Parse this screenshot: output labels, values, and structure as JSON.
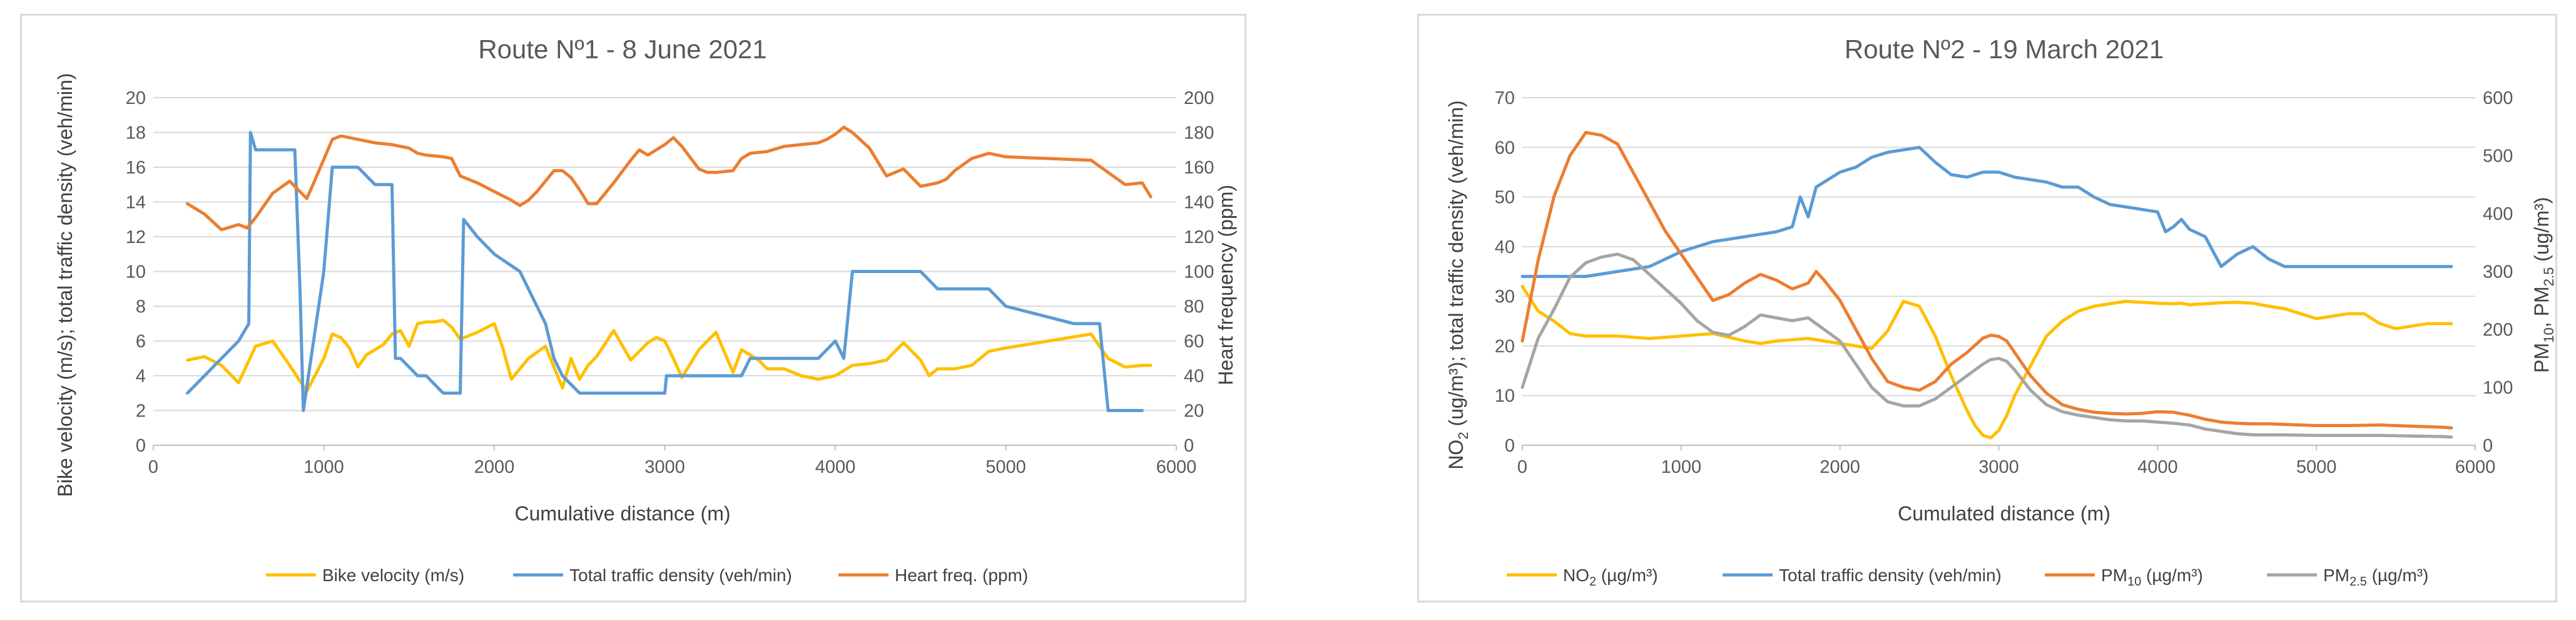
{
  "chart_data": [
    {
      "type": "line",
      "title": "Route Nº1 - 8 June 2021",
      "xlabel": "Cumulative distance (m)",
      "ylabel": "Bike velocity (m/s); total traffic density (veh/min)",
      "y2label": "Heart frequency (ppm)",
      "xlim": [
        0,
        6000
      ],
      "ylim": [
        0,
        20
      ],
      "y2lim": [
        0,
        200
      ],
      "x_ticks": [
        "0",
        "1000",
        "2000",
        "3000",
        "4000",
        "5000",
        "6000"
      ],
      "y_ticks": [
        "0",
        "2",
        "4",
        "6",
        "8",
        "10",
        "12",
        "14",
        "16",
        "18",
        "20"
      ],
      "y2_ticks": [
        "0",
        "20",
        "40",
        "60",
        "80",
        "100",
        "120",
        "140",
        "160",
        "180",
        "200"
      ],
      "grid": true,
      "legend_position": "bottom",
      "series": [
        {
          "name": "Bike velocity (m/s)",
          "axis": "left",
          "color": "#ffc000",
          "x": [
            200,
            300,
            400,
            500,
            600,
            700,
            800,
            900,
            1000,
            1050,
            1100,
            1150,
            1200,
            1250,
            1300,
            1350,
            1400,
            1450,
            1500,
            1550,
            1600,
            1650,
            1700,
            1750,
            1800,
            1900,
            2000,
            2050,
            2100,
            2150,
            2200,
            2300,
            2350,
            2400,
            2450,
            2500,
            2550,
            2600,
            2700,
            2800,
            2900,
            2950,
            3000,
            3050,
            3100,
            3200,
            3300,
            3400,
            3450,
            3500,
            3550,
            3600,
            3700,
            3800,
            3900,
            4000,
            4100,
            4200,
            4300,
            4400,
            4450,
            4500,
            4550,
            4600,
            4650,
            4700,
            4800,
            4900,
            5000,
            5500,
            5600,
            5700,
            5800,
            5850
          ],
          "values": [
            4.9,
            5.1,
            4.6,
            3.6,
            5.7,
            6.0,
            4.6,
            3.1,
            5.0,
            6.4,
            6.2,
            5.6,
            4.5,
            5.2,
            5.5,
            5.8,
            6.4,
            6.6,
            5.7,
            7.0,
            7.1,
            7.1,
            7.2,
            6.8,
            6.1,
            6.5,
            7.0,
            5.6,
            3.8,
            4.4,
            5.0,
            5.7,
            4.5,
            3.3,
            5.0,
            3.8,
            4.6,
            5.1,
            6.6,
            4.9,
            5.9,
            6.2,
            6.0,
            5.0,
            3.9,
            5.5,
            6.5,
            4.2,
            5.5,
            5.2,
            4.9,
            4.4,
            4.4,
            4.0,
            3.8,
            4.0,
            4.6,
            4.7,
            4.9,
            5.9,
            5.4,
            4.9,
            4.0,
            4.4,
            4.4,
            4.4,
            4.6,
            5.4,
            5.6,
            6.4,
            5.0,
            4.5,
            4.6,
            4.6
          ]
        },
        {
          "name": "Total traffic density (veh/min)",
          "axis": "left",
          "color": "#5b9bd5",
          "x": [
            200,
            300,
            400,
            500,
            560,
            570,
            600,
            700,
            800,
            830,
            860,
            880,
            1000,
            1050,
            1100,
            1200,
            1300,
            1400,
            1420,
            1450,
            1500,
            1550,
            1600,
            1700,
            1750,
            1800,
            1820,
            1900,
            2000,
            2150,
            2250,
            2300,
            2350,
            2400,
            2500,
            2600,
            2700,
            2800,
            2900,
            3000,
            3010,
            3200,
            3300,
            3400,
            3450,
            3500,
            3600,
            3700,
            3800,
            3900,
            3950,
            4000,
            4050,
            4100,
            4200,
            4300,
            4400,
            4500,
            4600,
            4700,
            4800,
            4900,
            5000,
            5400,
            5500,
            5550,
            5600,
            5700,
            5800
          ],
          "values": [
            3,
            4,
            5,
            6,
            7,
            18,
            17,
            17,
            17,
            17,
            9,
            2,
            10,
            16,
            16,
            16,
            15,
            15,
            5,
            5,
            4.5,
            4,
            4,
            3,
            3,
            3,
            13,
            12,
            11,
            10,
            8,
            7,
            5,
            4,
            3,
            3,
            3,
            3,
            3,
            3,
            4,
            4,
            4,
            4,
            4,
            5,
            5,
            5,
            5,
            5,
            5.5,
            6,
            5,
            10,
            10,
            10,
            10,
            10,
            9,
            9,
            9,
            9,
            8,
            7,
            7,
            7,
            2,
            2,
            2
          ]
        },
        {
          "name": "Heart freq. (ppm)",
          "axis": "right",
          "color": "#ed7d31",
          "x": [
            200,
            300,
            400,
            500,
            550,
            600,
            700,
            800,
            900,
            950,
            1050,
            1100,
            1150,
            1200,
            1300,
            1400,
            1500,
            1550,
            1600,
            1700,
            1750,
            1800,
            1900,
            2000,
            2100,
            2150,
            2200,
            2250,
            2300,
            2350,
            2400,
            2450,
            2500,
            2550,
            2600,
            2700,
            2800,
            2850,
            2900,
            3000,
            3050,
            3100,
            3200,
            3250,
            3300,
            3400,
            3450,
            3500,
            3600,
            3700,
            3800,
            3900,
            3950,
            4000,
            4050,
            4100,
            4200,
            4300,
            4400,
            4500,
            4550,
            4600,
            4650,
            4700,
            4800,
            4900,
            5000,
            5500,
            5600,
            5700,
            5800,
            5850
          ],
          "values": [
            139,
            133,
            124,
            127,
            125,
            131,
            145,
            152,
            142,
            153,
            176,
            178,
            177,
            176,
            174,
            173,
            171,
            168,
            167,
            166,
            165,
            155,
            151,
            146,
            141,
            138,
            141,
            146,
            152,
            158,
            158,
            154,
            147,
            139,
            139,
            151,
            164,
            170,
            167,
            173,
            177,
            172,
            159,
            157,
            157,
            158,
            165,
            168,
            169,
            172,
            173,
            174,
            176,
            179,
            183,
            180,
            171,
            155,
            159,
            149,
            150,
            151,
            153,
            158,
            165,
            168,
            166,
            164,
            157,
            150,
            151,
            143
          ]
        }
      ]
    },
    {
      "type": "line",
      "title": "Route Nº2 - 19 March 2021",
      "xlabel": "Cumulated distance (m)",
      "ylabel_main": "NO",
      "ylabel_sub": "2",
      "ylabel_rest": " (ug/m³); total traffic density (veh/min)",
      "y2label_a": "PM",
      "y2label_b": "10",
      "y2label_c": ", PM",
      "y2label_d": "2.5",
      "y2label_e": " (ug/m³)",
      "xlim": [
        0,
        6000
      ],
      "ylim": [
        0,
        70
      ],
      "y2lim": [
        0,
        600
      ],
      "x_ticks": [
        "0",
        "1000",
        "2000",
        "3000",
        "4000",
        "5000",
        "6000"
      ],
      "y_ticks": [
        "0",
        "10",
        "20",
        "30",
        "40",
        "50",
        "60",
        "70"
      ],
      "y2_ticks": [
        "0",
        "100",
        "200",
        "300",
        "400",
        "500",
        "600"
      ],
      "grid": true,
      "legend_position": "bottom",
      "series": [
        {
          "name": "NO2 (µg/m3)",
          "name_main": "NO",
          "name_sub": "2",
          "name_rest": " (µg/m³)",
          "axis": "left",
          "color": "#ffc000",
          "x": [
            0,
            100,
            200,
            300,
            400,
            500,
            600,
            800,
            1000,
            1200,
            1400,
            1500,
            1600,
            1800,
            2000,
            2100,
            2200,
            2300,
            2400,
            2500,
            2600,
            2700,
            2800,
            2850,
            2900,
            2950,
            3000,
            3050,
            3100,
            3200,
            3300,
            3400,
            3500,
            3600,
            3700,
            3800,
            3900,
            4000,
            4100,
            4150,
            4200,
            4300,
            4400,
            4500,
            4600,
            4700,
            4800,
            4900,
            5000,
            5100,
            5200,
            5300,
            5400,
            5500,
            5600,
            5700,
            5800,
            5850
          ],
          "values": [
            32,
            27,
            25,
            22.5,
            22,
            22,
            22,
            21.5,
            22,
            22.5,
            21,
            20.5,
            21,
            21.5,
            20.5,
            20,
            19.5,
            23,
            29,
            28,
            22,
            14,
            7,
            4,
            2,
            1.5,
            3,
            6,
            10,
            16,
            22,
            25,
            27,
            28,
            28.5,
            29,
            28.8,
            28.6,
            28.5,
            28.6,
            28.3,
            28.5,
            28.7,
            28.8,
            28.6,
            28,
            27.5,
            26.5,
            25.5,
            26,
            26.5,
            26.5,
            24.5,
            23.5,
            24,
            24.5,
            24.5,
            24.5
          ]
        },
        {
          "name": "Total traffic density (veh/min)",
          "axis": "left",
          "color": "#5b9bd5",
          "x": [
            0,
            200,
            400,
            600,
            800,
            1000,
            1200,
            1400,
            1600,
            1700,
            1750,
            1800,
            1850,
            2000,
            2100,
            2200,
            2300,
            2400,
            2500,
            2600,
            2700,
            2800,
            2900,
            3000,
            3100,
            3200,
            3300,
            3400,
            3500,
            3600,
            3700,
            3800,
            3900,
            4000,
            4050,
            4100,
            4150,
            4200,
            4300,
            4400,
            4500,
            4600,
            4700,
            4800,
            4900,
            5000,
            5200,
            5400,
            5600,
            5800,
            5850
          ],
          "values": [
            34,
            34,
            34,
            35,
            36,
            39,
            41,
            42,
            43,
            44,
            50,
            46,
            52,
            55,
            56,
            58,
            59,
            59.5,
            60,
            57,
            54.5,
            54,
            55,
            55,
            54,
            53.5,
            53,
            52,
            52,
            50,
            48.5,
            48,
            47.5,
            47,
            43,
            44,
            45.5,
            43.5,
            42,
            36,
            38.5,
            40,
            37.5,
            36,
            36,
            36,
            36,
            36,
            36,
            36,
            36
          ]
        },
        {
          "name": "PM10 (µg/m3)",
          "name_main": "PM",
          "name_sub": "10",
          "name_rest": " (µg/m³)",
          "axis": "right",
          "color": "#ed7d31",
          "x": [
            0,
            100,
            200,
            300,
            400,
            500,
            600,
            700,
            800,
            900,
            1000,
            1100,
            1200,
            1300,
            1400,
            1500,
            1600,
            1700,
            1800,
            1850,
            1900,
            2000,
            2100,
            2200,
            2300,
            2400,
            2500,
            2600,
            2700,
            2800,
            2900,
            2950,
            3000,
            3050,
            3100,
            3200,
            3300,
            3400,
            3500,
            3600,
            3700,
            3800,
            3900,
            4000,
            4100,
            4200,
            4300,
            4400,
            4500,
            4600,
            4700,
            4800,
            4900,
            5000,
            5200,
            5400,
            5600,
            5800,
            5850
          ],
          "values": [
            180,
            320,
            430,
            500,
            540,
            535,
            520,
            470,
            420,
            370,
            330,
            290,
            250,
            260,
            280,
            295,
            285,
            270,
            280,
            300,
            285,
            250,
            200,
            150,
            110,
            100,
            95,
            110,
            140,
            160,
            185,
            190,
            188,
            180,
            160,
            120,
            90,
            70,
            62,
            57,
            55,
            54,
            55,
            58,
            57,
            52,
            45,
            40,
            38,
            37,
            37,
            36,
            35,
            34,
            34,
            35,
            33,
            31,
            30
          ]
        },
        {
          "name": "PM2.5 (µg/m3)",
          "name_main": "PM",
          "name_sub": "2.5",
          "name_rest": " (µg/m³)",
          "axis": "right",
          "color": "#a5a5a5",
          "x": [
            0,
            100,
            200,
            300,
            400,
            500,
            600,
            700,
            800,
            900,
            1000,
            1100,
            1200,
            1300,
            1400,
            1500,
            1600,
            1700,
            1800,
            1850,
            1900,
            2000,
            2100,
            2200,
            2300,
            2400,
            2500,
            2600,
            2700,
            2800,
            2900,
            2950,
            3000,
            3050,
            3100,
            3200,
            3300,
            3400,
            3500,
            3600,
            3700,
            3800,
            3900,
            4000,
            4100,
            4200,
            4300,
            4400,
            4500,
            4600,
            4700,
            4800,
            5000,
            5200,
            5400,
            5600,
            5800,
            5850
          ],
          "values": [
            100,
            185,
            235,
            290,
            315,
            325,
            330,
            320,
            295,
            270,
            245,
            215,
            195,
            190,
            205,
            225,
            220,
            215,
            220,
            210,
            200,
            180,
            140,
            100,
            75,
            68,
            68,
            80,
            100,
            120,
            140,
            148,
            150,
            145,
            130,
            95,
            70,
            58,
            52,
            48,
            44,
            42,
            42,
            40,
            38,
            35,
            28,
            24,
            20,
            18,
            18,
            18,
            17,
            17,
            17,
            16,
            15,
            14
          ]
        }
      ]
    }
  ]
}
